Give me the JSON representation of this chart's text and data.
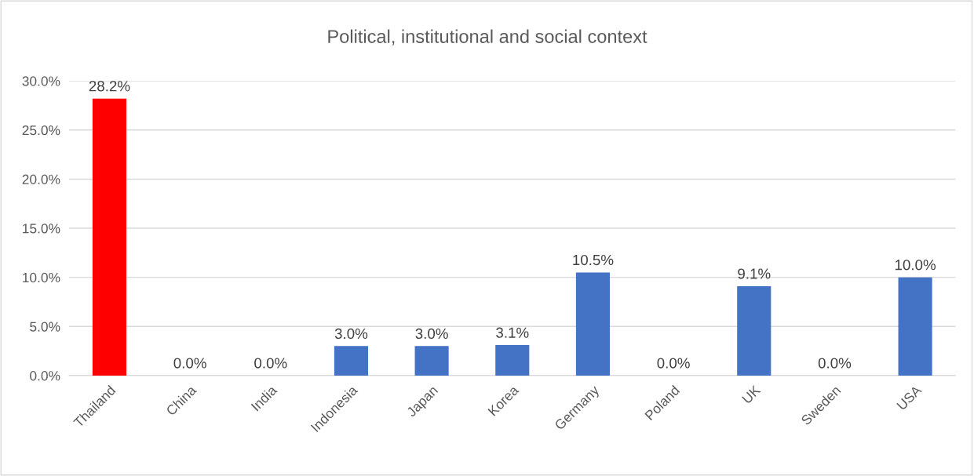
{
  "chart_data": {
    "type": "bar",
    "title": "Political, institutional and social context",
    "categories": [
      "Thailand",
      "China",
      "India",
      "Indonesia",
      "Japan",
      "Korea",
      "Germany",
      "Poland",
      "UK",
      "Sweden",
      "USA"
    ],
    "values": [
      28.2,
      0.0,
      0.0,
      3.0,
      3.0,
      3.1,
      10.5,
      0.0,
      9.1,
      0.0,
      10.0
    ],
    "colors": [
      "#ff0000",
      "#4472c4",
      "#4472c4",
      "#4472c4",
      "#4472c4",
      "#4472c4",
      "#4472c4",
      "#4472c4",
      "#4472c4",
      "#4472c4",
      "#4472c4"
    ],
    "value_labels": [
      "28.2%",
      "0.0%",
      "0.0%",
      "3.0%",
      "3.0%",
      "3.1%",
      "10.5%",
      "0.0%",
      "9.1%",
      "0.0%",
      "10.0%"
    ],
    "ylim": [
      0,
      30
    ],
    "yticks": [
      {
        "value": 0,
        "label": "0.0%"
      },
      {
        "value": 5,
        "label": "5.0%"
      },
      {
        "value": 10,
        "label": "10.0%"
      },
      {
        "value": 15,
        "label": "15.0%"
      },
      {
        "value": 20,
        "label": "20.0%"
      },
      {
        "value": 25,
        "label": "25.0%"
      },
      {
        "value": 30,
        "label": "30.0%"
      }
    ],
    "grid": "y",
    "legend": false
  }
}
